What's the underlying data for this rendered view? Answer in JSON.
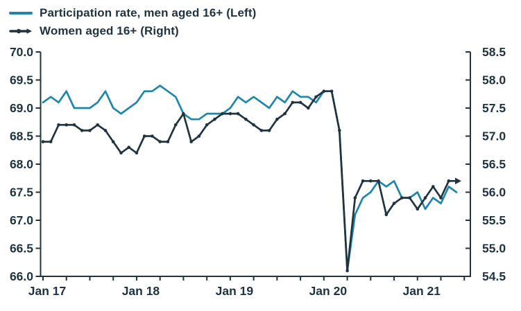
{
  "legend": {
    "items": [
      {
        "label": "Participation rate, men aged 16+ (Left)",
        "color": "#1e86a8",
        "marker": "line"
      },
      {
        "label": "Women aged 16+ (Right)",
        "color": "#20333e",
        "marker": "line-dot-arrow"
      }
    ]
  },
  "colors": {
    "background": "#ffffff",
    "axis": "#20333e",
    "text": "#1f333e",
    "men_line": "#1e86a8",
    "women_line": "#20333e"
  },
  "chart_data": {
    "type": "line",
    "title": "",
    "x": {
      "start": "Jan 2017",
      "end": "Jun 2021",
      "interval": "monthly"
    },
    "x_tick_labels": [
      "Jan 17",
      "Jan 18",
      "Jan 19",
      "Jan 20",
      "Jan 21"
    ],
    "left_axis": {
      "label": "Participation rate, men aged 16+",
      "min": 66.0,
      "max": 70.0,
      "step": 0.5,
      "tick_labels": [
        "70.0",
        "69.5",
        "69.0",
        "68.5",
        "68.0",
        "67.5",
        "67.0",
        "66.5",
        "66.0"
      ]
    },
    "right_axis": {
      "label": "Women aged 16+",
      "min": 54.5,
      "max": 58.5,
      "step": 0.5,
      "tick_labels": [
        "58.5",
        "58.0",
        "57.5",
        "57.0",
        "56.5",
        "56.0",
        "55.5",
        "55.0",
        "54.5"
      ]
    },
    "grid": false,
    "legend_position": "top-left",
    "series": [
      {
        "name": "Participation rate, men aged 16+ (Left)",
        "axis": "left",
        "color": "#1e86a8",
        "marker": "none",
        "end_arrow": false,
        "values": [
          69.1,
          69.2,
          69.1,
          69.3,
          69.0,
          69.0,
          69.0,
          69.1,
          69.3,
          69.0,
          68.9,
          69.0,
          69.1,
          69.3,
          69.3,
          69.4,
          69.3,
          69.2,
          68.9,
          68.8,
          68.8,
          68.9,
          68.9,
          68.9,
          69.0,
          69.2,
          69.1,
          69.2,
          69.1,
          69.0,
          69.2,
          69.1,
          69.3,
          69.2,
          69.2,
          69.1,
          69.3,
          69.3,
          68.6,
          66.1,
          67.1,
          67.4,
          67.5,
          67.7,
          67.6,
          67.7,
          67.4,
          67.4,
          67.5,
          67.2,
          67.4,
          67.3,
          67.6,
          67.5
        ]
      },
      {
        "name": "Women aged 16+ (Right)",
        "axis": "right",
        "color": "#20333e",
        "marker": "dot",
        "end_arrow": true,
        "values": [
          56.9,
          56.9,
          57.2,
          57.2,
          57.2,
          57.1,
          57.1,
          57.2,
          57.1,
          56.9,
          56.7,
          56.8,
          56.7,
          57.0,
          57.0,
          56.9,
          56.9,
          57.2,
          57.4,
          56.9,
          57.0,
          57.2,
          57.3,
          57.4,
          57.4,
          57.4,
          57.3,
          57.2,
          57.1,
          57.1,
          57.3,
          57.4,
          57.6,
          57.6,
          57.5,
          57.7,
          57.8,
          57.8,
          57.1,
          54.6,
          55.9,
          56.2,
          56.2,
          56.2,
          55.6,
          55.8,
          55.9,
          55.9,
          55.7,
          55.9,
          56.1,
          55.9,
          56.2,
          56.2
        ]
      }
    ]
  }
}
